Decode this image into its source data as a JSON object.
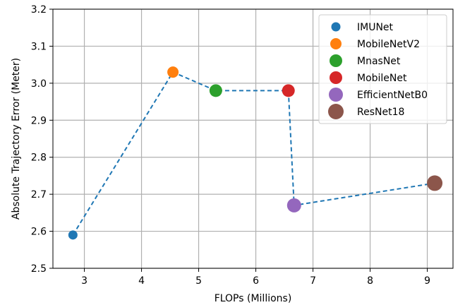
{
  "chart_data": {
    "type": "scatter",
    "xlabel": "FLOPs (Millions)",
    "ylabel": "Absolute Trajectory Error (Meter)",
    "xlim": [
      2.45,
      9.45
    ],
    "ylim": [
      2.5,
      3.2
    ],
    "xticks": [
      "3",
      "4",
      "5",
      "6",
      "7",
      "8",
      "9"
    ],
    "yticks": [
      "2.5",
      "2.6",
      "2.7",
      "2.8",
      "2.9",
      "3.0",
      "3.1",
      "3.2"
    ],
    "grid": true,
    "legend_position": "top-right",
    "series": [
      {
        "name": "IMUNet",
        "x": 2.8,
        "y": 2.59,
        "color": "#1f77b4",
        "marker_size": "small"
      },
      {
        "name": "MobileNetV2",
        "x": 4.55,
        "y": 3.03,
        "color": "#ff7f0e",
        "marker_size": "small-medium"
      },
      {
        "name": "MnasNet",
        "x": 5.3,
        "y": 2.98,
        "color": "#2ca02c",
        "marker_size": "medium"
      },
      {
        "name": "MobileNet",
        "x": 6.57,
        "y": 2.98,
        "color": "#d62728",
        "marker_size": "medium"
      },
      {
        "name": "EfficientNetB0",
        "x": 6.67,
        "y": 2.67,
        "color": "#9467bd",
        "marker_size": "medium-large"
      },
      {
        "name": "ResNet18",
        "x": 9.13,
        "y": 2.73,
        "color": "#8c564b",
        "marker_size": "large"
      }
    ],
    "connector_line": {
      "style": "dashed",
      "color": "#1f77b4"
    }
  }
}
